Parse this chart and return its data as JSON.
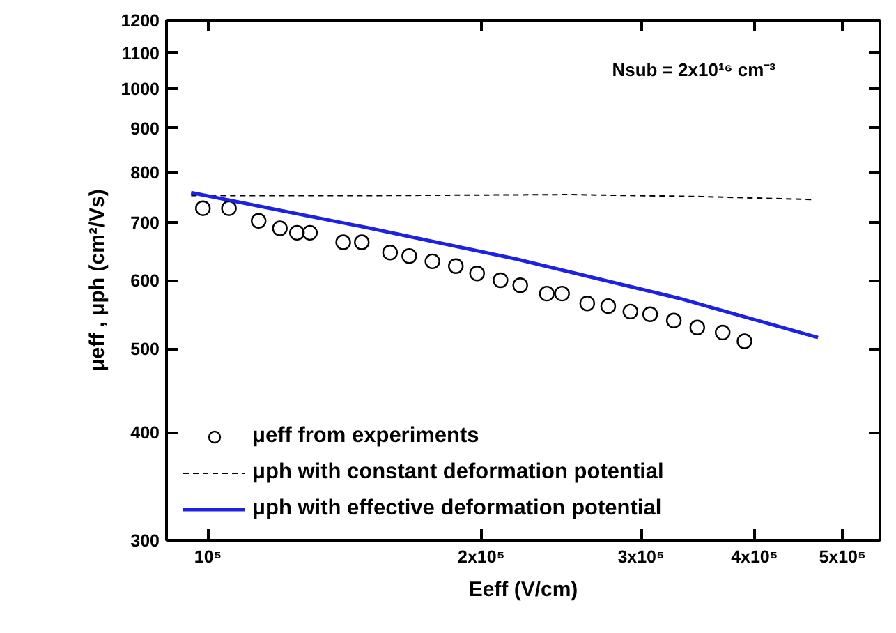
{
  "chart_data": {
    "type": "line",
    "log": "xy",
    "xlabel": "Eeff (V/cm)",
    "ylabel": "μeff , μph (cm²/Vs)",
    "xlim": [
      90000,
      550000
    ],
    "ylim": [
      300,
      1200
    ],
    "xticks": [
      {
        "value": 100000,
        "label": "10⁵"
      },
      {
        "value": 200000,
        "label": "2x10⁵"
      },
      {
        "value": 300000,
        "label": "3x10⁵"
      },
      {
        "value": 400000,
        "label": "4x10⁵"
      },
      {
        "value": 500000,
        "label": "5x10⁵"
      }
    ],
    "yticks": [
      300,
      400,
      500,
      600,
      700,
      800,
      900,
      1000,
      1100,
      1200
    ],
    "grid": false,
    "legend": "bottom left",
    "annotations": [
      "Nsub = 2x10¹⁶ cm⁻³"
    ],
    "series": [
      {
        "name": "μeff from experiments",
        "type": "scatter",
        "marker": "circle",
        "color": "#000000",
        "x": [
          98700,
          105450,
          113700,
          120000,
          125300,
          129500,
          140900,
          147700,
          158700,
          166600,
          176700,
          187500,
          197900,
          210000,
          220800,
          236200,
          245500,
          261700,
          276000,
          292000,
          307000,
          326000,
          346000,
          369000,
          390000
        ],
        "values": [
          727,
          727,
          703,
          689,
          681,
          681,
          664,
          664,
          646,
          640,
          631,
          623,
          611,
          600,
          592,
          579,
          579,
          564,
          560,
          552,
          548,
          539,
          529,
          522,
          510
        ]
      },
      {
        "name": "μph with constant deformation potential",
        "line_style": "dashed",
        "color": "#000000",
        "x": [
          95800,
          150000,
          250000,
          350000,
          464000
        ],
        "values": [
          752,
          752,
          754,
          750,
          744
        ]
      },
      {
        "name": "μph with effective deformation potential",
        "line_style": "solid",
        "color": "#2020e0",
        "x": [
          95800,
          150000,
          218500,
          330000,
          470000
        ],
        "values": [
          758,
          690,
          635,
          572,
          515
        ]
      }
    ]
  }
}
